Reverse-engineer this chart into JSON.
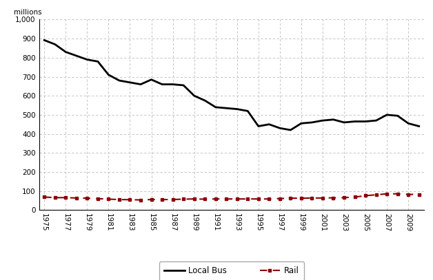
{
  "years": [
    1975,
    1976,
    1977,
    1978,
    1979,
    1980,
    1981,
    1982,
    1983,
    1984,
    1985,
    1986,
    1987,
    1988,
    1989,
    1990,
    1991,
    1992,
    1993,
    1994,
    1995,
    1996,
    1997,
    1998,
    1999,
    2000,
    2001,
    2002,
    2003,
    2004,
    2005,
    2006,
    2007,
    2008,
    2009,
    2010
  ],
  "local_bus": [
    892,
    870,
    830,
    810,
    790,
    780,
    710,
    680,
    670,
    660,
    685,
    660,
    660,
    655,
    600,
    575,
    540,
    535,
    530,
    520,
    440,
    450,
    430,
    420,
    455,
    460,
    470,
    475,
    460,
    465,
    465,
    470,
    500,
    495,
    455,
    440
  ],
  "rail": [
    68,
    65,
    65,
    63,
    62,
    60,
    57,
    55,
    54,
    53,
    55,
    55,
    55,
    57,
    58,
    57,
    58,
    58,
    58,
    58,
    58,
    58,
    60,
    62,
    62,
    63,
    63,
    64,
    65,
    68,
    75,
    80,
    85,
    85,
    82,
    82
  ],
  "ylabel": "millions",
  "ylim": [
    0,
    1000
  ],
  "xlim": [
    1974.5,
    2010.5
  ],
  "yticks": [
    0,
    100,
    200,
    300,
    400,
    500,
    600,
    700,
    800,
    900,
    1000
  ],
  "xticks": [
    1975,
    1977,
    1979,
    1981,
    1983,
    1985,
    1987,
    1989,
    1991,
    1993,
    1995,
    1997,
    1999,
    2001,
    2003,
    2005,
    2007,
    2009
  ],
  "bus_color": "#000000",
  "rail_color": "#8B0000",
  "grid_color": "#bbbbbb",
  "legend_labels": [
    "Local Bus",
    "Rail"
  ],
  "background_color": "#ffffff"
}
